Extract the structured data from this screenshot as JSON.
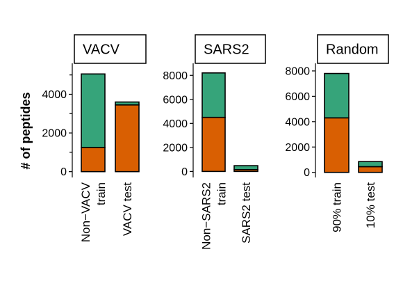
{
  "y_axis_title": "# of peptides",
  "colors": {
    "positive": "#d95f02",
    "negative": "#36a47a"
  },
  "chart_data": [
    {
      "type": "bar",
      "stacked": true,
      "title": "VACV",
      "categories": [
        "Non−VACV\ntrain",
        "VACV test"
      ],
      "series": [
        {
          "values": [
            1250,
            3450
          ]
        },
        {
          "values": [
            3800,
            150
          ]
        }
      ],
      "ylim": [
        -300,
        5600
      ],
      "ticks": {
        "major": [
          0,
          2000,
          4000
        ],
        "major_labels": [
          "0",
          "2000",
          "4000"
        ],
        "minor": [
          1000,
          3000,
          5000
        ]
      }
    },
    {
      "type": "bar",
      "stacked": true,
      "title": "SARS2",
      "categories": [
        "Non−SARS2\ntrain",
        "SARS2 test"
      ],
      "series": [
        {
          "values": [
            4500,
            150
          ]
        },
        {
          "values": [
            3700,
            330
          ]
        }
      ],
      "ylim": [
        -500,
        9000
      ],
      "ticks": {
        "major": [
          0,
          2000,
          4000,
          6000,
          8000
        ],
        "major_labels": [
          "0",
          "2000",
          "4000",
          "6000",
          "8000"
        ],
        "minor": []
      }
    },
    {
      "type": "bar",
      "stacked": true,
      "title": "Random",
      "categories": [
        "90% train",
        "10% test"
      ],
      "series": [
        {
          "values": [
            4300,
            450
          ]
        },
        {
          "values": [
            3500,
            400
          ]
        }
      ],
      "ylim": [
        -400,
        8600
      ],
      "ticks": {
        "major": [
          0,
          2000,
          4000,
          6000,
          8000
        ],
        "major_labels": [
          "0",
          "2000",
          "4000",
          "6000",
          "8000"
        ],
        "minor": []
      }
    }
  ]
}
